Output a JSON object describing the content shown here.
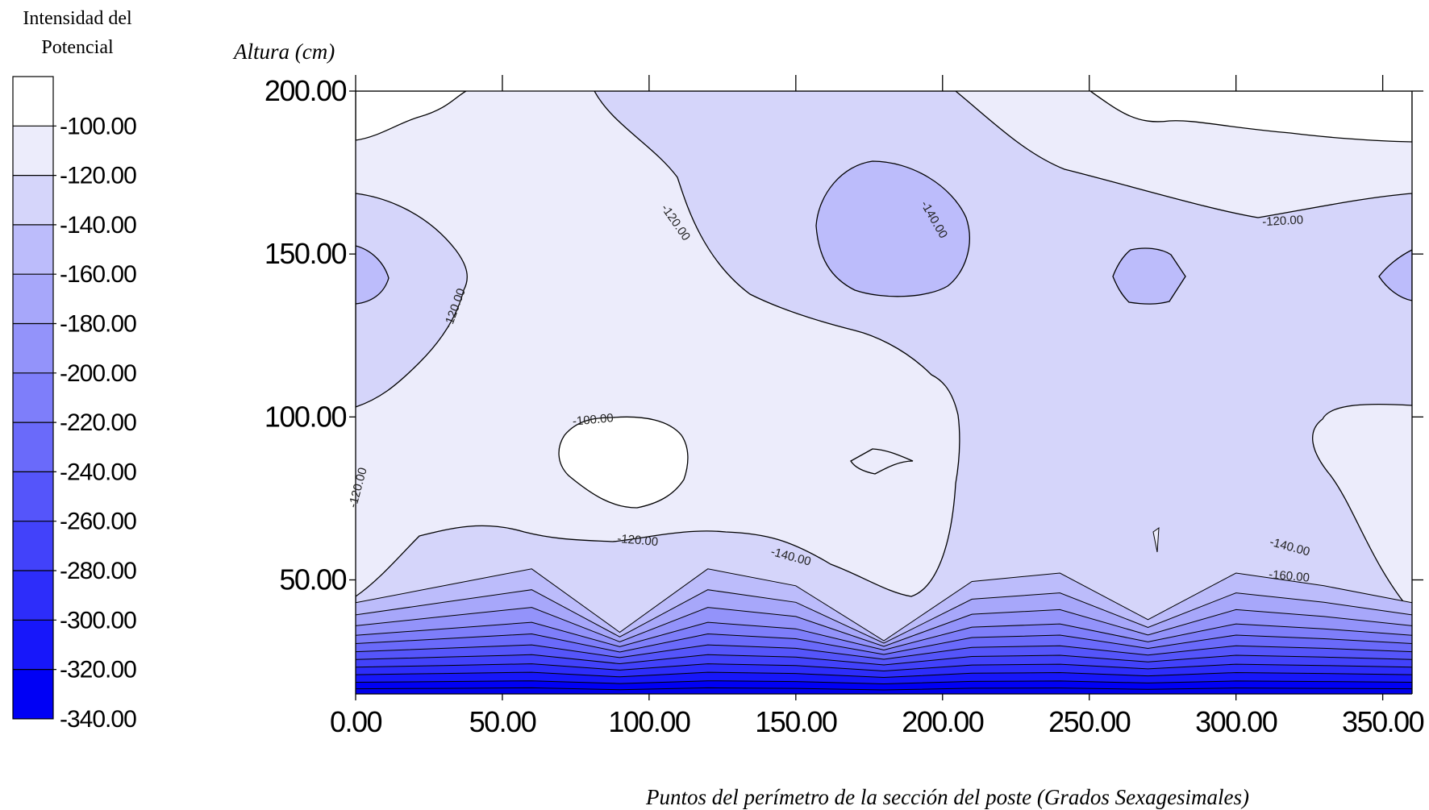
{
  "chart_data": {
    "type": "contour",
    "title": "",
    "xlabel": "Puntos del perímetro de la sección del poste (Grados Sexagesimales)",
    "ylabel": "Altura (cm)",
    "xlim": [
      0,
      360
    ],
    "ylim": [
      15,
      200
    ],
    "x_ticks": [
      0,
      50,
      100,
      150,
      200,
      250,
      300,
      350
    ],
    "y_ticks": [
      50,
      100,
      150,
      200
    ],
    "x_tick_labels": [
      "0.00",
      "50.00",
      "100.00",
      "150.00",
      "200.00",
      "250.00",
      "300.00",
      "350.00"
    ],
    "y_tick_labels": [
      "50.00",
      "100.00",
      "150.00",
      "200.00"
    ],
    "legend": {
      "title_line1": "Intensidad del",
      "title_line2": "Potencial",
      "levels": [
        "-100.00",
        "-120.00",
        "-140.00",
        "-160.00",
        "-180.00",
        "-200.00",
        "-220.00",
        "-240.00",
        "-260.00",
        "-280.00",
        "-300.00",
        "-320.00",
        "-340.00"
      ],
      "colors": [
        "#ffffff",
        "#ececfb",
        "#d5d5fa",
        "#bcbcfb",
        "#a7a7fa",
        "#9393fa",
        "#7e7efa",
        "#6a6afa",
        "#5555fa",
        "#4242fa",
        "#2d2dfa",
        "#1717fa",
        "#0000f5"
      ]
    },
    "contour_labels": [
      {
        "text": "-120.00",
        "x": 108,
        "y": 159
      },
      {
        "text": "-120.00",
        "x": 35,
        "y": 133
      },
      {
        "text": "-100.00",
        "x": 81,
        "y": 98
      },
      {
        "text": "-120.00",
        "x": 96,
        "y": 61
      },
      {
        "text": "-140.00",
        "x": 148,
        "y": 56
      },
      {
        "text": "-120.00",
        "x": 2,
        "y": 78
      },
      {
        "text": "-140.00",
        "x": 196,
        "y": 160
      },
      {
        "text": "-120.00",
        "x": 316,
        "y": 159
      },
      {
        "text": "-140.00",
        "x": 318,
        "y": 59
      },
      {
        "text": "-160.00",
        "x": 318,
        "y": 50
      }
    ]
  }
}
